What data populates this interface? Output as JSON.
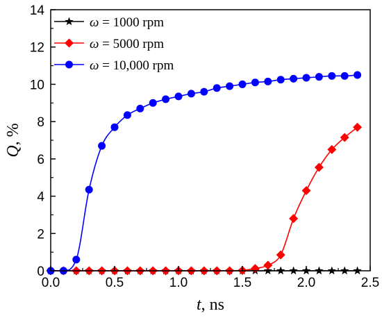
{
  "chart_data": {
    "type": "line",
    "xlabel": "t, ns",
    "xlabel_var": "t",
    "xlabel_unit": ", ns",
    "ylabel": "Q, %",
    "ylabel_var": "Q",
    "ylabel_unit": ", %",
    "xlim": [
      0,
      2.5
    ],
    "ylim": [
      0,
      14
    ],
    "xticks": [
      0.0,
      0.5,
      1.0,
      1.5,
      2.0,
      2.5
    ],
    "xtick_labels": [
      "0.0",
      "0.5",
      "1.0",
      "1.5",
      "2.0",
      "2.5"
    ],
    "yticks": [
      0,
      2,
      4,
      6,
      8,
      10,
      12,
      14
    ],
    "ytick_labels": [
      "0",
      "2",
      "4",
      "6",
      "8",
      "10",
      "12",
      "14"
    ],
    "grid": false,
    "legend_position": "top-left",
    "x": [
      0.0,
      0.1,
      0.2,
      0.3,
      0.4,
      0.5,
      0.6,
      0.7,
      0.8,
      0.9,
      1.0,
      1.1,
      1.2,
      1.3,
      1.4,
      1.5,
      1.6,
      1.7,
      1.8,
      1.9,
      2.0,
      2.1,
      2.2,
      2.3,
      2.4
    ],
    "series": [
      {
        "name": "ω = 1000 rpm",
        "legend_var": "ω",
        "legend_rest": " = 1000 rpm",
        "color": "#000000",
        "marker": "star",
        "values": [
          0,
          0,
          0,
          0,
          0,
          0,
          0,
          0,
          0,
          0,
          0,
          0,
          0,
          0,
          0,
          0,
          0,
          0,
          0,
          0,
          0,
          0,
          0,
          0,
          0
        ]
      },
      {
        "name": "ω = 5000 rpm",
        "legend_var": "ω",
        "legend_rest": " = 5000 rpm",
        "color": "#ff0000",
        "marker": "diamond",
        "values": [
          0,
          0,
          0,
          0,
          0,
          0,
          0,
          0,
          0,
          0,
          0,
          0,
          0,
          0,
          0,
          0.02,
          0.12,
          0.3,
          0.85,
          2.8,
          4.3,
          5.55,
          6.5,
          7.15,
          7.7
        ]
      },
      {
        "name": "ω = 10,000 rpm",
        "legend_var": "ω",
        "legend_rest": " = 10,000 rpm",
        "color": "#0000ff",
        "marker": "circle",
        "values": [
          0,
          0,
          0.6,
          4.35,
          6.7,
          7.7,
          8.35,
          8.7,
          9.0,
          9.2,
          9.35,
          9.5,
          9.6,
          9.8,
          9.9,
          10.0,
          10.1,
          10.15,
          10.25,
          10.3,
          10.35,
          10.4,
          10.45,
          10.45,
          10.5
        ]
      }
    ]
  }
}
